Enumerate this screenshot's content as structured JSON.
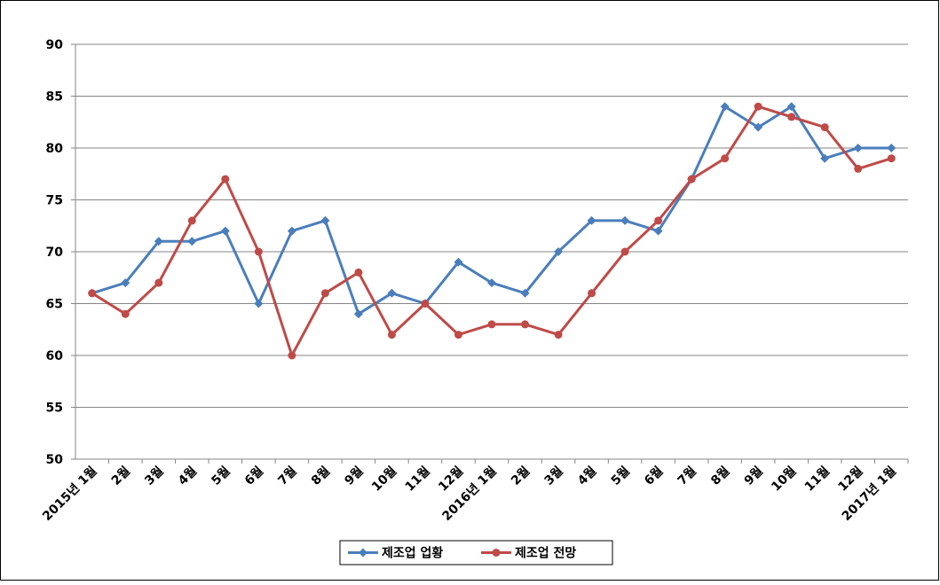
{
  "chart_data": {
    "type": "line",
    "categories": [
      "2015년 1월",
      "2월",
      "3월",
      "4월",
      "5월",
      "6월",
      "7월",
      "8월",
      "9월",
      "10월",
      "11월",
      "12월",
      "2016년 1월",
      "2월",
      "3월",
      "4월",
      "5월",
      "6월",
      "7월",
      "8월",
      "9월",
      "10월",
      "11월",
      "12월",
      "2017년 1월"
    ],
    "series": [
      {
        "name": "제조업 업황",
        "color": "#4a7ebb",
        "marker": "diamond",
        "values": [
          66,
          67,
          71,
          71,
          72,
          65,
          72,
          73,
          64,
          66,
          65,
          69,
          67,
          66,
          70,
          73,
          73,
          72,
          77,
          84,
          82,
          84,
          79,
          80,
          80
        ]
      },
      {
        "name": "제조업 전망",
        "color": "#be4b48",
        "marker": "circle",
        "values": [
          66,
          64,
          67,
          73,
          77,
          70,
          60,
          66,
          68,
          62,
          65,
          62,
          63,
          63,
          62,
          66,
          70,
          73,
          77,
          79,
          84,
          83,
          82,
          78,
          79
        ]
      }
    ],
    "ylim": [
      50,
      90
    ],
    "yticks": [
      50,
      55,
      60,
      65,
      70,
      75,
      80,
      85,
      90
    ],
    "grid": true,
    "legend": "bottom"
  }
}
